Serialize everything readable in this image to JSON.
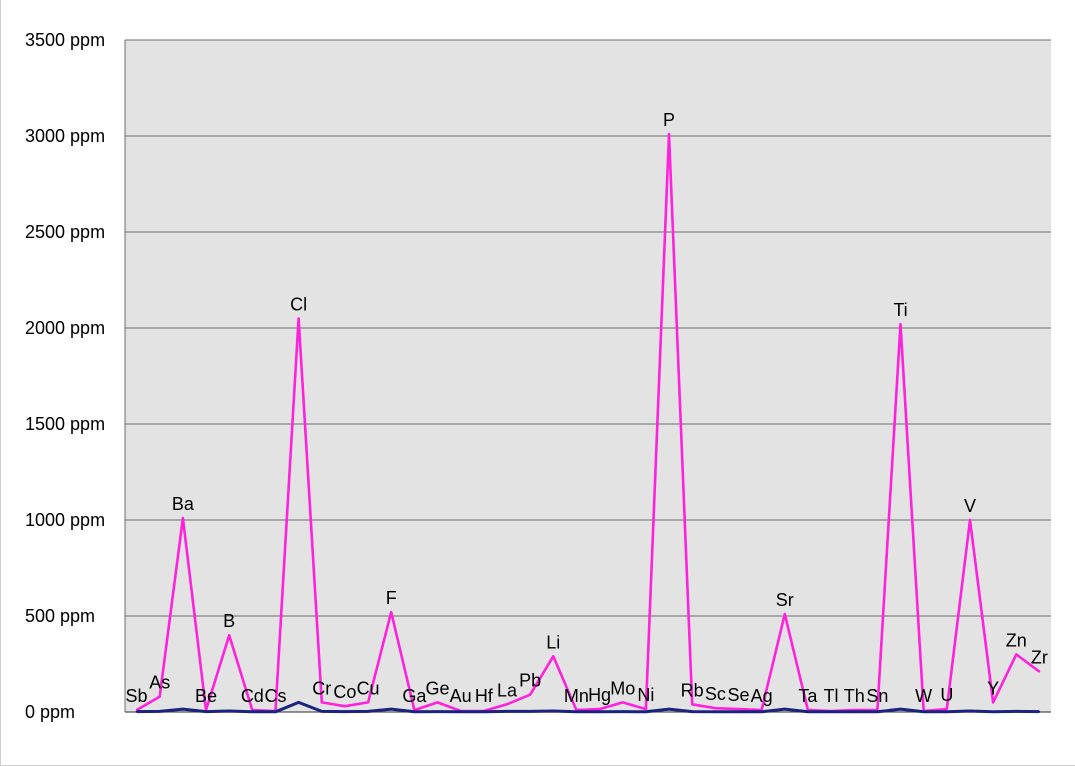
{
  "chart_data": {
    "type": "line",
    "y_tick_labels": [
      "0 ppm",
      "500 ppm",
      "1000 ppm",
      "1500 ppm",
      "2000 ppm",
      "2500 ppm",
      "3000 ppm",
      "3500 ppm"
    ],
    "ylim": [
      0,
      3500
    ],
    "grid": true,
    "categories": [
      "Sb",
      "As",
      "Ba",
      "Be",
      "B",
      "Cd",
      "Cs",
      "Cl",
      "Cr",
      "Co",
      "Cu",
      "F",
      "Ga",
      "Ge",
      "Au",
      "Hf",
      "La",
      "Pb",
      "Li",
      "Mn",
      "Hg",
      "Mo",
      "Ni",
      "P",
      "Rb",
      "Sc",
      "Se",
      "Ag",
      "Sr",
      "Ta",
      "Tl",
      "Th",
      "Sn",
      "Ti",
      "W",
      "U",
      "V",
      "Y",
      "Zn",
      "Zr"
    ],
    "series": [
      {
        "color": "#ff22dd",
        "values": [
          10,
          80,
          1010,
          10,
          400,
          10,
          5,
          2050,
          50,
          30,
          50,
          520,
          10,
          50,
          5,
          5,
          40,
          90,
          290,
          10,
          15,
          50,
          15,
          3010,
          40,
          20,
          15,
          10,
          510,
          10,
          5,
          10,
          10,
          2020,
          5,
          15,
          1000,
          50,
          300,
          210
        ]
      },
      {
        "color": "#1a237e",
        "values": [
          2,
          3,
          15,
          2,
          5,
          1,
          1,
          50,
          3,
          2,
          3,
          15,
          1,
          2,
          1,
          1,
          3,
          3,
          5,
          1,
          1,
          2,
          1,
          15,
          2,
          1,
          1,
          1,
          15,
          1,
          1,
          1,
          1,
          15,
          1,
          1,
          5,
          1,
          3,
          2
        ]
      }
    ],
    "label_offsets_note": ""
  }
}
